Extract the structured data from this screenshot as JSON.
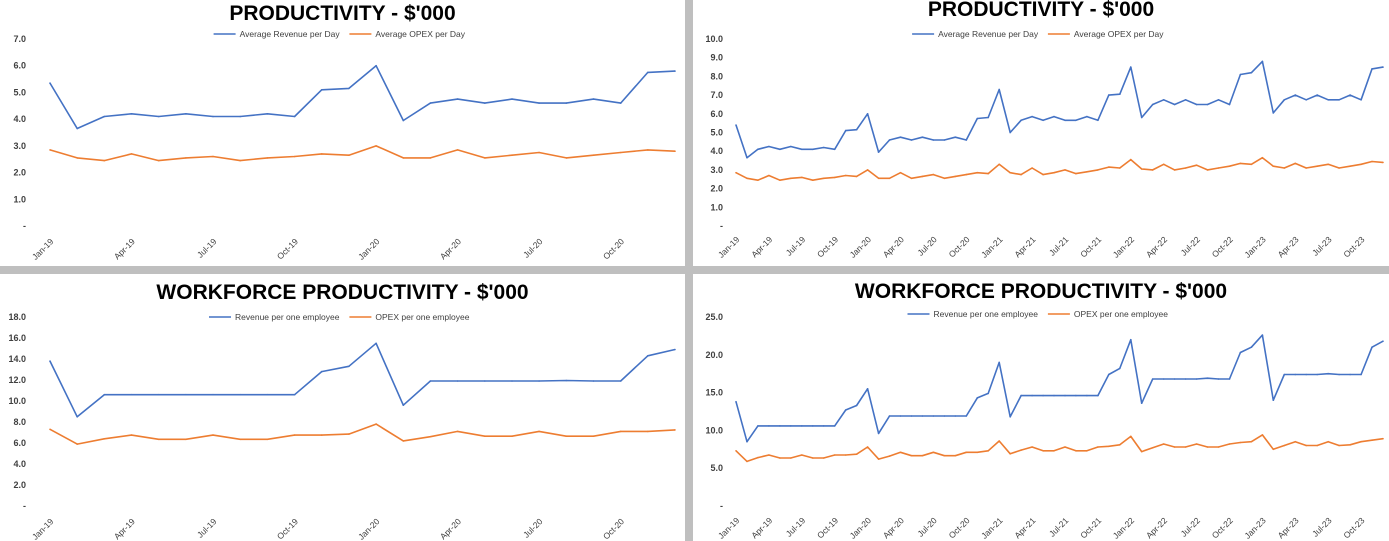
{
  "colors": {
    "revenue": "#4472c4",
    "opex": "#ed7d31",
    "gridline": "#d9d9d9"
  },
  "chart_data": [
    {
      "type": "line",
      "title": "PRODUCTIVITY - $'000",
      "xlabel": "",
      "ylabel": "",
      "ylim": [
        0,
        7
      ],
      "yticks": [
        "-",
        "1.0",
        "2.0",
        "3.0",
        "4.0",
        "5.0",
        "6.0",
        "7.0"
      ],
      "x_tick_labels": [
        "Jan-19",
        "Apr-19",
        "Jul-19",
        "Oct-19",
        "Jan-20",
        "Apr-20",
        "Jul-20",
        "Oct-20"
      ],
      "legend": "top-center",
      "grid": false,
      "series": [
        {
          "name": "Average Revenue per Day",
          "color": "revenue",
          "values": [
            5.35,
            3.65,
            4.1,
            4.2,
            4.1,
            4.2,
            4.1,
            4.1,
            4.2,
            4.1,
            5.1,
            5.15,
            6.0,
            3.95,
            4.6,
            4.75,
            4.6,
            4.75,
            4.6,
            4.6,
            4.75,
            4.6,
            5.75,
            5.8
          ]
        },
        {
          "name": "Average OPEX per Day",
          "color": "opex",
          "values": [
            2.85,
            2.55,
            2.45,
            2.7,
            2.45,
            2.55,
            2.6,
            2.45,
            2.55,
            2.6,
            2.7,
            2.65,
            3.0,
            2.55,
            2.55,
            2.85,
            2.55,
            2.65,
            2.75,
            2.55,
            2.65,
            2.75,
            2.85,
            2.8
          ]
        }
      ]
    },
    {
      "type": "line",
      "title": "PRODUCTIVITY - $'000",
      "xlabel": "",
      "ylabel": "",
      "ylim": [
        0,
        10
      ],
      "yticks": [
        "-",
        "1.0",
        "2.0",
        "3.0",
        "4.0",
        "5.0",
        "6.0",
        "7.0",
        "8.0",
        "9.0",
        "10.0"
      ],
      "x_tick_labels": [
        "Jan-19",
        "Apr-19",
        "Jul-19",
        "Oct-19",
        "Jan-20",
        "Apr-20",
        "Jul-20",
        "Oct-20",
        "Jan-21",
        "Apr-21",
        "Jul-21",
        "Oct-21",
        "Jan-22",
        "Apr-22",
        "Jul-22",
        "Oct-22",
        "Jan-23",
        "Apr-23",
        "Jul-23",
        "Oct-23"
      ],
      "legend": "top-center",
      "grid": false,
      "series": [
        {
          "name": "Average Revenue per Day",
          "color": "revenue",
          "values": [
            5.4,
            3.65,
            4.1,
            4.25,
            4.1,
            4.25,
            4.1,
            4.1,
            4.2,
            4.1,
            5.1,
            5.15,
            6.0,
            3.95,
            4.6,
            4.75,
            4.6,
            4.75,
            4.6,
            4.6,
            4.75,
            4.6,
            5.75,
            5.8,
            7.3,
            5.0,
            5.65,
            5.85,
            5.65,
            5.85,
            5.65,
            5.65,
            5.85,
            5.65,
            7.0,
            7.05,
            8.5,
            5.8,
            6.5,
            6.75,
            6.5,
            6.75,
            6.5,
            6.5,
            6.75,
            6.5,
            8.1,
            8.2,
            8.8,
            6.05,
            6.75,
            7.0,
            6.75,
            7.0,
            6.75,
            6.75,
            7.0,
            6.75,
            8.4,
            8.5
          ]
        },
        {
          "name": "Average OPEX per Day",
          "color": "opex",
          "values": [
            2.85,
            2.55,
            2.45,
            2.7,
            2.45,
            2.55,
            2.6,
            2.45,
            2.55,
            2.6,
            2.7,
            2.65,
            3.0,
            2.55,
            2.55,
            2.85,
            2.55,
            2.65,
            2.75,
            2.55,
            2.65,
            2.75,
            2.85,
            2.8,
            3.3,
            2.85,
            2.75,
            3.1,
            2.75,
            2.85,
            3.0,
            2.8,
            2.9,
            3.0,
            3.15,
            3.1,
            3.55,
            3.05,
            3.0,
            3.3,
            3.0,
            3.1,
            3.25,
            3.0,
            3.1,
            3.2,
            3.35,
            3.3,
            3.65,
            3.2,
            3.1,
            3.35,
            3.1,
            3.2,
            3.3,
            3.1,
            3.2,
            3.3,
            3.45,
            3.4
          ]
        }
      ]
    },
    {
      "type": "line",
      "title": "WORKFORCE PRODUCTIVITY - $'000",
      "xlabel": "",
      "ylabel": "",
      "ylim": [
        0,
        18
      ],
      "yticks": [
        "-",
        "2.0",
        "4.0",
        "6.0",
        "8.0",
        "10.0",
        "12.0",
        "14.0",
        "16.0",
        "18.0"
      ],
      "x_tick_labels": [
        "Jan-19",
        "Apr-19",
        "Jul-19",
        "Oct-19",
        "Jan-20",
        "Apr-20",
        "Jul-20",
        "Oct-20"
      ],
      "legend": "top-center",
      "grid": false,
      "series": [
        {
          "name": "Revenue per one employee",
          "color": "revenue",
          "values": [
            13.8,
            8.5,
            10.6,
            10.6,
            10.6,
            10.6,
            10.6,
            10.6,
            10.6,
            10.6,
            12.8,
            13.3,
            15.5,
            9.6,
            11.9,
            11.9,
            11.9,
            11.9,
            11.9,
            11.95,
            11.9,
            11.9,
            14.3,
            14.9
          ]
        },
        {
          "name": "OPEX per one employee",
          "color": "opex",
          "values": [
            7.3,
            5.9,
            6.4,
            6.75,
            6.35,
            6.35,
            6.75,
            6.35,
            6.35,
            6.75,
            6.75,
            6.85,
            7.8,
            6.2,
            6.6,
            7.1,
            6.65,
            6.65,
            7.1,
            6.65,
            6.65,
            7.1,
            7.1,
            7.25
          ]
        }
      ]
    },
    {
      "type": "line",
      "title": "WORKFORCE PRODUCTIVITY - $'000",
      "xlabel": "",
      "ylabel": "",
      "ylim": [
        0,
        25
      ],
      "yticks": [
        "-",
        "5.0",
        "10.0",
        "15.0",
        "20.0",
        "25.0"
      ],
      "x_tick_labels": [
        "Jan-19",
        "Apr-19",
        "Jul-19",
        "Oct-19",
        "Jan-20",
        "Apr-20",
        "Jul-20",
        "Oct-20",
        "Jan-21",
        "Apr-21",
        "Jul-21",
        "Oct-21",
        "Jan-22",
        "Apr-22",
        "Jul-22",
        "Oct-22",
        "Jan-23",
        "Apr-23",
        "Jul-23",
        "Oct-23"
      ],
      "legend": "top-center",
      "grid": false,
      "series": [
        {
          "name": "Revenue per one employee",
          "color": "revenue",
          "values": [
            13.8,
            8.5,
            10.6,
            10.6,
            10.6,
            10.6,
            10.6,
            10.6,
            10.6,
            10.6,
            12.7,
            13.3,
            15.5,
            9.6,
            11.9,
            11.9,
            11.9,
            11.9,
            11.9,
            11.9,
            11.9,
            11.9,
            14.3,
            14.9,
            19.0,
            11.8,
            14.6,
            14.6,
            14.6,
            14.6,
            14.6,
            14.6,
            14.6,
            14.6,
            17.4,
            18.2,
            22.0,
            13.6,
            16.8,
            16.8,
            16.8,
            16.8,
            16.8,
            16.9,
            16.8,
            16.8,
            20.3,
            21.0,
            22.6,
            14.0,
            17.4,
            17.4,
            17.4,
            17.4,
            17.5,
            17.4,
            17.4,
            17.4,
            21.0,
            21.8
          ]
        },
        {
          "name": "OPEX per one employee",
          "color": "opex",
          "values": [
            7.3,
            5.9,
            6.4,
            6.75,
            6.35,
            6.35,
            6.75,
            6.35,
            6.35,
            6.75,
            6.75,
            6.85,
            7.8,
            6.2,
            6.6,
            7.1,
            6.65,
            6.65,
            7.1,
            6.65,
            6.65,
            7.1,
            7.1,
            7.3,
            8.6,
            6.9,
            7.4,
            7.8,
            7.3,
            7.3,
            7.8,
            7.3,
            7.3,
            7.8,
            7.9,
            8.1,
            9.2,
            7.2,
            7.7,
            8.2,
            7.8,
            7.8,
            8.2,
            7.8,
            7.8,
            8.2,
            8.4,
            8.5,
            9.4,
            7.5,
            8.0,
            8.5,
            8.0,
            8.0,
            8.5,
            8.0,
            8.1,
            8.5,
            8.7,
            8.9
          ]
        }
      ]
    }
  ]
}
